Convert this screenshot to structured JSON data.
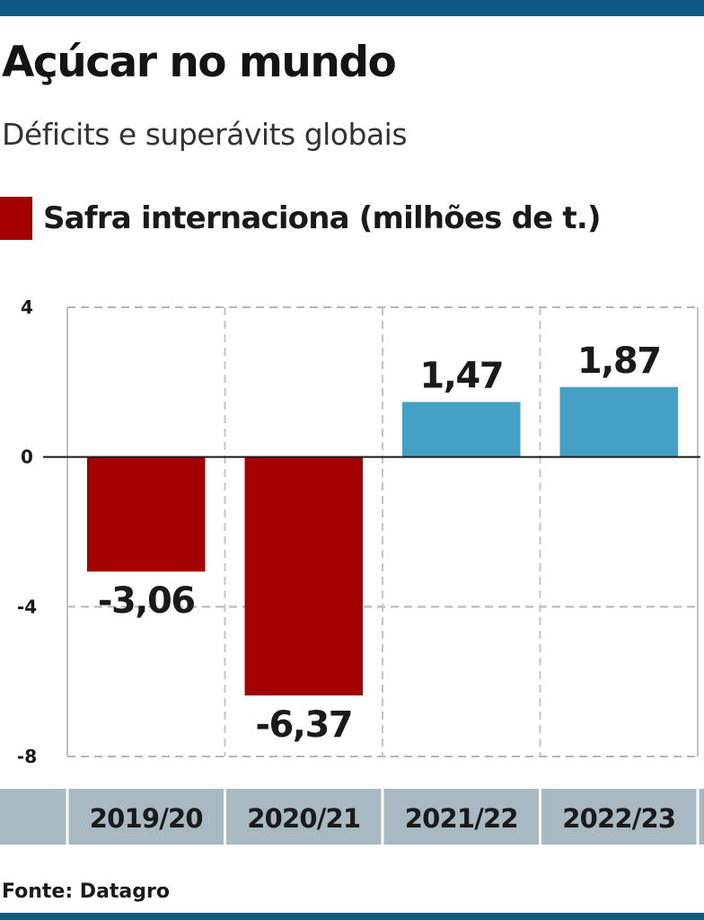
{
  "header": {
    "title": "Açúcar no mundo",
    "subtitle": "Déficits e superávits globais"
  },
  "legend": {
    "label": "Safra internaciona (milhões de t.)",
    "color": "#a50000"
  },
  "footer": {
    "source": "Fonte: Datagro"
  },
  "colors": {
    "negative": "#a50000",
    "positive": "#44a0c4",
    "axis_band": "#a9b9c2",
    "brand_bar": "#0f5a85"
  },
  "chart_data": {
    "type": "bar",
    "categories": [
      "2019/20",
      "2020/21",
      "2021/22",
      "2022/23"
    ],
    "series": [
      {
        "name": "Safra internaciona (milhões de t.)",
        "values": [
          -3.06,
          -6.37,
          1.47,
          1.87
        ],
        "labels": [
          "-3,06",
          "-6,37",
          "1,47",
          "1,87"
        ]
      }
    ],
    "yticks": [
      4,
      0,
      -4,
      -8
    ],
    "ylim": [
      -8,
      4
    ],
    "grid": true,
    "legend_position": "top-left",
    "xlabel": "",
    "ylabel": ""
  }
}
